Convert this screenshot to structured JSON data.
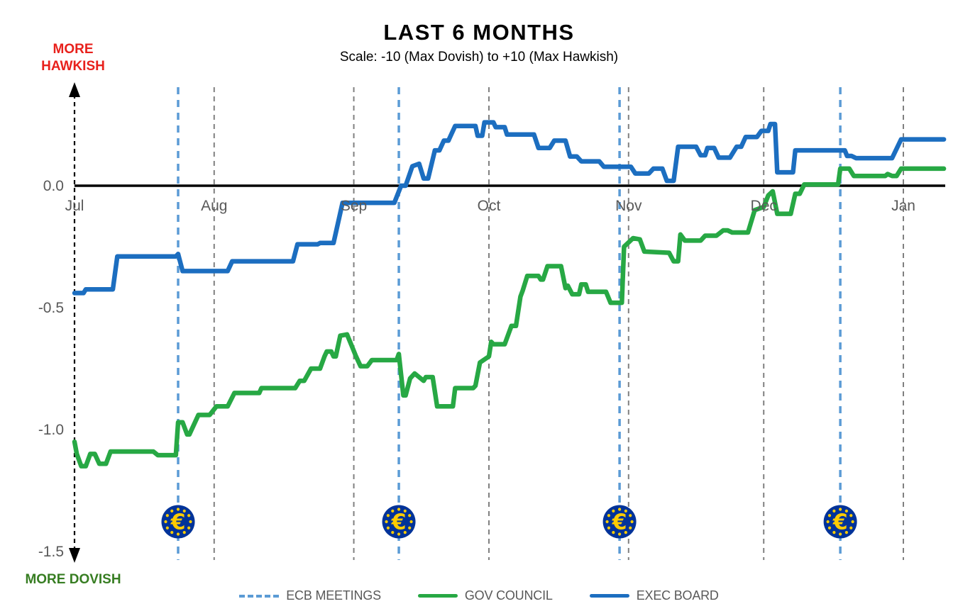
{
  "chart_data": {
    "type": "line",
    "title": "LAST 6 MONTHS",
    "subtitle": "Scale: -10 (Max Dovish) to +10 (Max Hawkish)",
    "y_axis": {
      "top_label": "MORE HAWKISH",
      "bottom_label": "MORE DOVISH",
      "top_label_color": "#e8211c",
      "bottom_label_color": "#377d22",
      "ticks": [
        {
          "label": "0.0",
          "value": 0.0
        },
        {
          "label": "-0.5",
          "value": -0.5
        },
        {
          "label": "-1.0",
          "value": -1.0
        },
        {
          "label": "-1.5",
          "value": -1.5
        }
      ],
      "range": [
        -1.54,
        0.41
      ]
    },
    "x_axis": {
      "months": [
        {
          "label": "Jul",
          "day": 0
        },
        {
          "label": "Aug",
          "day": 31
        },
        {
          "label": "Sep",
          "day": 62
        },
        {
          "label": "Oct",
          "day": 92
        },
        {
          "label": "Nov",
          "day": 123
        },
        {
          "label": "Dec",
          "day": 153
        },
        {
          "label": "Jan",
          "day": 184
        }
      ],
      "range_days": [
        0,
        194
      ],
      "gridline_color": "#808080"
    },
    "ecb_meetings": {
      "days": [
        23,
        72,
        121,
        170
      ],
      "line_color": "#5B9BD5",
      "icon": "euro-icon",
      "icon_bg": "#003399",
      "icon_fg": "#FFCC00",
      "euro_symbol": "€",
      "icon_value": -1.38
    },
    "zero_line_color": "#000000",
    "series": [
      {
        "name": "GOV COUNCIL",
        "color": "#27A844",
        "points": [
          [
            0,
            -1.05
          ],
          [
            0.5,
            -1.1
          ],
          [
            1.5,
            -1.15
          ],
          [
            2.5,
            -1.15
          ],
          [
            3.5,
            -1.1
          ],
          [
            4.5,
            -1.1
          ],
          [
            5.5,
            -1.14
          ],
          [
            7,
            -1.14
          ],
          [
            8,
            -1.09
          ],
          [
            17.5,
            -1.09
          ],
          [
            18.5,
            -1.105
          ],
          [
            22.5,
            -1.105
          ],
          [
            23,
            -0.97
          ],
          [
            24,
            -0.97
          ],
          [
            25,
            -1.02
          ],
          [
            25.5,
            -1.02
          ],
          [
            27.5,
            -0.94
          ],
          [
            30,
            -0.94
          ],
          [
            31.5,
            -0.905
          ],
          [
            34,
            -0.905
          ],
          [
            35.5,
            -0.85
          ],
          [
            41,
            -0.85
          ],
          [
            41.5,
            -0.83
          ],
          [
            49,
            -0.83
          ],
          [
            50,
            -0.8
          ],
          [
            51,
            -0.8
          ],
          [
            52.5,
            -0.75
          ],
          [
            54.5,
            -0.75
          ],
          [
            55.5,
            -0.7
          ],
          [
            56,
            -0.68
          ],
          [
            57,
            -0.68
          ],
          [
            57.5,
            -0.7
          ],
          [
            58,
            -0.7
          ],
          [
            59,
            -0.615
          ],
          [
            60.5,
            -0.61
          ],
          [
            61.5,
            -0.655
          ],
          [
            62.5,
            -0.7
          ],
          [
            63.5,
            -0.74
          ],
          [
            65,
            -0.74
          ],
          [
            66,
            -0.715
          ],
          [
            71.5,
            -0.715
          ],
          [
            72,
            -0.69
          ],
          [
            73,
            -0.86
          ],
          [
            73.5,
            -0.86
          ],
          [
            74.5,
            -0.79
          ],
          [
            75.5,
            -0.77
          ],
          [
            76.5,
            -0.785
          ],
          [
            77.5,
            -0.8
          ],
          [
            78,
            -0.785
          ],
          [
            79.5,
            -0.785
          ],
          [
            80.5,
            -0.905
          ],
          [
            84,
            -0.905
          ],
          [
            84.5,
            -0.83
          ],
          [
            88.5,
            -0.83
          ],
          [
            89,
            -0.82
          ],
          [
            90,
            -0.725
          ],
          [
            92,
            -0.7
          ],
          [
            92.5,
            -0.64
          ],
          [
            93,
            -0.65
          ],
          [
            95.5,
            -0.65
          ],
          [
            97,
            -0.575
          ],
          [
            98,
            -0.575
          ],
          [
            99,
            -0.455
          ],
          [
            99.5,
            -0.43
          ],
          [
            100.5,
            -0.37
          ],
          [
            103,
            -0.37
          ],
          [
            103.5,
            -0.385
          ],
          [
            104,
            -0.385
          ],
          [
            105,
            -0.33
          ],
          [
            108,
            -0.33
          ],
          [
            109,
            -0.42
          ],
          [
            109.5,
            -0.41
          ],
          [
            110.5,
            -0.445
          ],
          [
            112,
            -0.445
          ],
          [
            112.5,
            -0.405
          ],
          [
            113.5,
            -0.405
          ],
          [
            114,
            -0.435
          ],
          [
            118,
            -0.435
          ],
          [
            119,
            -0.48
          ],
          [
            121.5,
            -0.48
          ],
          [
            122,
            -0.25
          ],
          [
            124,
            -0.215
          ],
          [
            125.5,
            -0.22
          ],
          [
            126.5,
            -0.27
          ],
          [
            132,
            -0.275
          ],
          [
            133,
            -0.31
          ],
          [
            134,
            -0.31
          ],
          [
            134.5,
            -0.2
          ],
          [
            135.5,
            -0.225
          ],
          [
            139,
            -0.225
          ],
          [
            140,
            -0.205
          ],
          [
            142.5,
            -0.205
          ],
          [
            144,
            -0.183
          ],
          [
            145,
            -0.183
          ],
          [
            146,
            -0.192
          ],
          [
            149.5,
            -0.192
          ],
          [
            151,
            -0.1
          ],
          [
            153,
            -0.087
          ],
          [
            154,
            -0.04
          ],
          [
            155,
            -0.023
          ],
          [
            156,
            -0.115
          ],
          [
            159,
            -0.115
          ],
          [
            160,
            -0.033
          ],
          [
            161,
            -0.033
          ],
          [
            162,
            0.005
          ],
          [
            169.5,
            0.005
          ],
          [
            170,
            0.07
          ],
          [
            172,
            0.07
          ],
          [
            173,
            0.04
          ],
          [
            180,
            0.04
          ],
          [
            180.5,
            0.048
          ],
          [
            181.5,
            0.04
          ],
          [
            182.5,
            0.04
          ],
          [
            183.5,
            0.07
          ],
          [
            193,
            0.07
          ]
        ]
      },
      {
        "name": "EXEC BOARD",
        "color": "#1C6EC0",
        "points": [
          [
            0,
            -0.44
          ],
          [
            2,
            -0.44
          ],
          [
            2.5,
            -0.425
          ],
          [
            8.5,
            -0.425
          ],
          [
            9.5,
            -0.29
          ],
          [
            22.5,
            -0.29
          ],
          [
            23,
            -0.28
          ],
          [
            24,
            -0.35
          ],
          [
            34,
            -0.35
          ],
          [
            35,
            -0.31
          ],
          [
            48.5,
            -0.31
          ],
          [
            49.5,
            -0.24
          ],
          [
            54,
            -0.24
          ],
          [
            54.5,
            -0.235
          ],
          [
            57.5,
            -0.235
          ],
          [
            59.5,
            -0.07
          ],
          [
            71,
            -0.07
          ],
          [
            72.5,
            0
          ],
          [
            73.5,
            0
          ],
          [
            75,
            0.08
          ],
          [
            76.5,
            0.09
          ],
          [
            77.5,
            0.03
          ],
          [
            78.5,
            0.03
          ],
          [
            80,
            0.145
          ],
          [
            81,
            0.145
          ],
          [
            82,
            0.185
          ],
          [
            83,
            0.185
          ],
          [
            84.5,
            0.245
          ],
          [
            89,
            0.245
          ],
          [
            89.5,
            0.205
          ],
          [
            90.5,
            0.205
          ],
          [
            91,
            0.26
          ],
          [
            93,
            0.26
          ],
          [
            93.5,
            0.24
          ],
          [
            95.5,
            0.24
          ],
          [
            96,
            0.21
          ],
          [
            102,
            0.21
          ],
          [
            103,
            0.155
          ],
          [
            105.5,
            0.155
          ],
          [
            106.5,
            0.185
          ],
          [
            109,
            0.185
          ],
          [
            110,
            0.12
          ],
          [
            111.5,
            0.12
          ],
          [
            112.5,
            0.1
          ],
          [
            116.5,
            0.1
          ],
          [
            117.5,
            0.078
          ],
          [
            123.5,
            0.078
          ],
          [
            124.5,
            0.05
          ],
          [
            127.5,
            0.05
          ],
          [
            128.5,
            0.07
          ],
          [
            130.5,
            0.07
          ],
          [
            131.5,
            0.02
          ],
          [
            133,
            0.02
          ],
          [
            134,
            0.16
          ],
          [
            138,
            0.16
          ],
          [
            139,
            0.125
          ],
          [
            140,
            0.125
          ],
          [
            140.5,
            0.155
          ],
          [
            142,
            0.155
          ],
          [
            143,
            0.115
          ],
          [
            145.5,
            0.115
          ],
          [
            147,
            0.16
          ],
          [
            148,
            0.16
          ],
          [
            149,
            0.2
          ],
          [
            151.5,
            0.2
          ],
          [
            152.5,
            0.225
          ],
          [
            154,
            0.225
          ],
          [
            154.5,
            0.253
          ],
          [
            155.5,
            0.253
          ],
          [
            156,
            0.055
          ],
          [
            159.5,
            0.055
          ],
          [
            160,
            0.145
          ],
          [
            171,
            0.145
          ],
          [
            171.5,
            0.122
          ],
          [
            172.5,
            0.122
          ],
          [
            173.5,
            0.113
          ],
          [
            181.5,
            0.113
          ],
          [
            183.5,
            0.19
          ],
          [
            193,
            0.19
          ]
        ]
      }
    ],
    "legend": [
      {
        "label": "ECB MEETINGS",
        "style": "dashed",
        "color": "#5B9BD5"
      },
      {
        "label": "GOV COUNCIL",
        "style": "solid",
        "color": "#27A844"
      },
      {
        "label": "EXEC BOARD",
        "style": "solid",
        "color": "#1C6EC0"
      }
    ],
    "legend_position": "bottom-center",
    "grid": "vertical-dashed-only"
  }
}
